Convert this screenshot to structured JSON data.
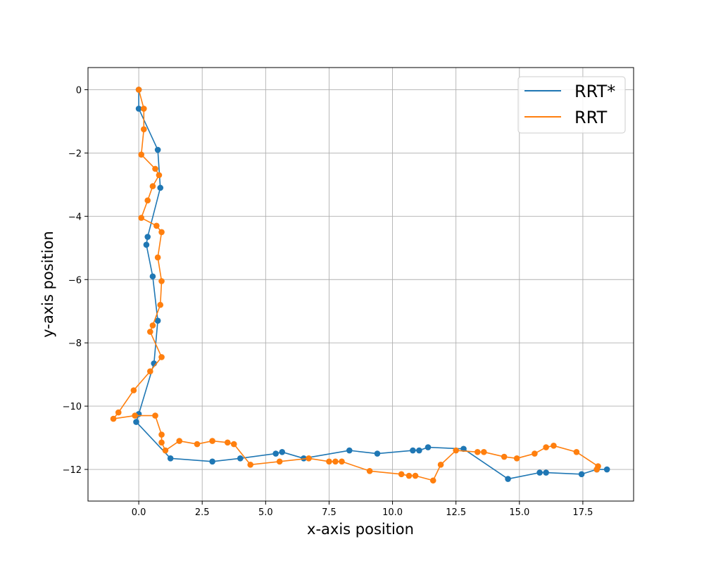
{
  "chart_data": {
    "type": "line",
    "title": "",
    "xlabel": "x-axis position",
    "ylabel": "y-axis position",
    "xlim": [
      -2.0,
      19.5
    ],
    "ylim": [
      -13.0,
      0.7
    ],
    "x_ticks": [
      0.0,
      2.5,
      5.0,
      7.5,
      10.0,
      12.5,
      15.0,
      17.5
    ],
    "x_tick_labels": [
      "0.0",
      "2.5",
      "5.0",
      "7.5",
      "10.0",
      "12.5",
      "15.0",
      "17.5"
    ],
    "y_ticks": [
      0,
      -2,
      -4,
      -6,
      -8,
      -10,
      -12
    ],
    "y_tick_labels": [
      "0",
      "−2",
      "−4",
      "−6",
      "−8",
      "−10",
      "−12"
    ],
    "grid": true,
    "legend_position": "top-right",
    "series": [
      {
        "name": "RRT*",
        "color": "#1f77b4",
        "marker": "circle",
        "points": [
          [
            0.0,
            0.0
          ],
          [
            0.0,
            -0.6
          ],
          [
            0.75,
            -1.9
          ],
          [
            0.85,
            -3.1
          ],
          [
            0.35,
            -4.65
          ],
          [
            0.3,
            -4.9
          ],
          [
            0.55,
            -5.9
          ],
          [
            0.75,
            -7.3
          ],
          [
            0.6,
            -8.65
          ],
          [
            0.0,
            -10.25
          ],
          [
            -0.1,
            -10.5
          ],
          [
            1.25,
            -11.65
          ],
          [
            2.9,
            -11.75
          ],
          [
            4.0,
            -11.65
          ],
          [
            5.4,
            -11.5
          ],
          [
            5.65,
            -11.45
          ],
          [
            6.5,
            -11.65
          ],
          [
            8.3,
            -11.4
          ],
          [
            9.4,
            -11.5
          ],
          [
            10.8,
            -11.4
          ],
          [
            11.05,
            -11.4
          ],
          [
            11.4,
            -11.3
          ],
          [
            12.8,
            -11.35
          ],
          [
            14.55,
            -12.3
          ],
          [
            15.8,
            -12.1
          ],
          [
            16.05,
            -12.1
          ],
          [
            17.45,
            -12.15
          ],
          [
            18.05,
            -12.0
          ],
          [
            18.45,
            -12.0
          ]
        ]
      },
      {
        "name": "RRT",
        "color": "#ff7f0e",
        "marker": "circle",
        "points": [
          [
            0.0,
            0.0
          ],
          [
            0.2,
            -0.6
          ],
          [
            0.2,
            -1.25
          ],
          [
            0.1,
            -2.05
          ],
          [
            0.65,
            -2.5
          ],
          [
            0.8,
            -2.7
          ],
          [
            0.55,
            -3.05
          ],
          [
            0.35,
            -3.5
          ],
          [
            0.1,
            -4.05
          ],
          [
            0.7,
            -4.3
          ],
          [
            0.9,
            -4.5
          ],
          [
            0.75,
            -5.3
          ],
          [
            0.9,
            -6.05
          ],
          [
            0.85,
            -6.8
          ],
          [
            0.55,
            -7.45
          ],
          [
            0.45,
            -7.65
          ],
          [
            0.9,
            -8.45
          ],
          [
            0.45,
            -8.9
          ],
          [
            -0.2,
            -9.5
          ],
          [
            -0.8,
            -10.2
          ],
          [
            -1.0,
            -10.4
          ],
          [
            -0.15,
            -10.3
          ],
          [
            0.65,
            -10.3
          ],
          [
            0.9,
            -10.9
          ],
          [
            0.9,
            -11.15
          ],
          [
            1.05,
            -11.4
          ],
          [
            1.6,
            -11.1
          ],
          [
            2.3,
            -11.2
          ],
          [
            2.9,
            -11.1
          ],
          [
            3.5,
            -11.15
          ],
          [
            3.75,
            -11.2
          ],
          [
            4.4,
            -11.85
          ],
          [
            5.55,
            -11.75
          ],
          [
            6.7,
            -11.65
          ],
          [
            7.5,
            -11.75
          ],
          [
            7.75,
            -11.75
          ],
          [
            8.0,
            -11.75
          ],
          [
            9.1,
            -12.05
          ],
          [
            10.35,
            -12.15
          ],
          [
            10.65,
            -12.2
          ],
          [
            10.9,
            -12.2
          ],
          [
            11.6,
            -12.35
          ],
          [
            11.9,
            -11.85
          ],
          [
            12.5,
            -11.4
          ],
          [
            13.35,
            -11.45
          ],
          [
            13.6,
            -11.45
          ],
          [
            14.4,
            -11.6
          ],
          [
            14.9,
            -11.65
          ],
          [
            15.6,
            -11.5
          ],
          [
            16.05,
            -11.3
          ],
          [
            16.35,
            -11.25
          ],
          [
            17.25,
            -11.45
          ],
          [
            18.1,
            -11.9
          ],
          [
            18.05,
            -12.0
          ]
        ]
      }
    ]
  }
}
